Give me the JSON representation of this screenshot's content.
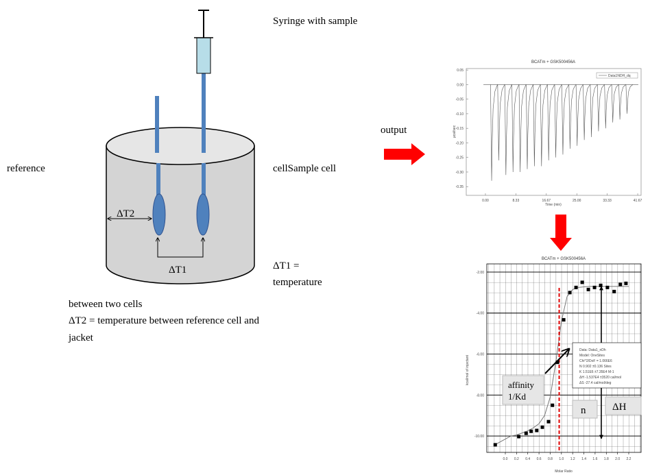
{
  "labels": {
    "syringe": "Syringe with sample",
    "output": "output",
    "reference": "reference",
    "sample_cell": "cellSample cell",
    "dt2_arrow": "ΔT2",
    "dt1_arrow": "ΔT1",
    "dt1_def": [
      "ΔT1 =",
      "temperature"
    ],
    "between": "between two cells",
    "dt2_def": "ΔT2 = temperature between reference cell and",
    "jacket": "jacket"
  },
  "raw_plot": {
    "title": "BCATm + GSK500456A",
    "legend": "Data1NDH_dq",
    "xlabel": "Time (min)",
    "ylabel": "µcal/sec",
    "xlim": [
      -5.25,
      42.6
    ],
    "ylim": [
      -0.38,
      0.055
    ],
    "xticks": [
      {
        "value": 0,
        "label": "0.00"
      },
      8.33,
      16.67,
      {
        "value": 25,
        "label": "25.00"
      },
      33.33,
      41.67
    ],
    "yticks": [
      0.05,
      {
        "value": 0,
        "label": "0.00"
      },
      -0.05,
      {
        "value": -0.1,
        "label": "-0.10"
      },
      -0.15,
      {
        "value": -0.2,
        "label": "-0.20"
      },
      -0.25,
      {
        "value": -0.3,
        "label": "-0.30"
      },
      -0.35
    ],
    "times": [
      1.7,
      3.65,
      5.6,
      7.55,
      9.5,
      11.45,
      13.4,
      15.35,
      17.3,
      19.25,
      21.2,
      23.15,
      25.1,
      27.05,
      29,
      30.95,
      32.9,
      34.85,
      36.8,
      38.75
    ],
    "peaks": [
      -0.33,
      -0.26,
      -0.31,
      -0.3,
      -0.3,
      -0.29,
      -0.28,
      -0.28,
      -0.26,
      -0.25,
      -0.24,
      -0.22,
      -0.21,
      -0.19,
      -0.18,
      -0.16,
      -0.15,
      -0.13,
      -0.12,
      -0.1
    ]
  },
  "fit_plot": {
    "title": "BCATm + GSK500456A",
    "xlabel": "Molar Ratio",
    "ylabel": "kcal/mol of injectant",
    "xlim": [
      -0.33,
      2.42
    ],
    "ylim": [
      -10.8,
      -1.6
    ],
    "xticks": [
      {
        "value": 0,
        "label": "0.0"
      },
      0.2,
      0.4,
      0.6,
      0.8,
      {
        "value": 1,
        "label": "1.0"
      },
      1.2,
      1.4,
      1.6,
      1.8,
      {
        "value": 2,
        "label": "2.0"
      },
      2.2
    ],
    "yticks": [
      {
        "value": -2,
        "label": "-2.00"
      },
      {
        "value": -4,
        "label": "-4.00"
      },
      {
        "value": -6,
        "label": "-6.00"
      },
      {
        "value": -8,
        "label": "-8.00"
      },
      {
        "value": -10,
        "label": "-10.00"
      }
    ],
    "x": [
      -0.18,
      0.24,
      0.37,
      0.46,
      0.56,
      0.66,
      0.77,
      0.84,
      0.93,
      1.04,
      1.15,
      1.26,
      1.37,
      1.48,
      1.59,
      1.7,
      1.82,
      1.94,
      2.05,
      2.15
    ],
    "y": [
      -10.43,
      -10.03,
      -9.87,
      -9.77,
      -9.73,
      -9.57,
      -9.3,
      -8.5,
      -6.4,
      -4.33,
      -3.0,
      -2.75,
      -2.5,
      -2.85,
      -2.75,
      -2.65,
      -2.75,
      -2.95,
      -2.6,
      -2.55
    ],
    "fit_x": [
      -0.2,
      -0.1,
      0,
      0.1,
      0.2,
      0.3,
      0.4,
      0.5,
      0.6,
      0.7,
      0.8,
      0.9,
      1,
      1.1,
      1.2,
      1.3,
      1.4,
      1.5,
      1.6,
      1.7,
      1.8,
      1.9,
      2,
      2.1,
      2.2
    ],
    "fit_y": [
      -10.45,
      -10.3,
      -10.15,
      -10.0,
      -9.95,
      -9.85,
      -9.75,
      -9.6,
      -9.4,
      -9.0,
      -8.1,
      -6.4,
      -4.4,
      -3.2,
      -2.85,
      -2.75,
      -2.72,
      -2.7,
      -2.7,
      -2.7,
      -2.7,
      -2.7,
      -2.7,
      -2.7,
      -2.7
    ],
    "n_x": 0.96,
    "inset": [
      "Data: Data1_nDh",
      "Model: OneSites",
      "Chi^2/DoF = 1.066E6",
      "N   0.902 ±0.136 Sites",
      "K   1.51E6 ±7.35E4 M-1",
      "ΔH  -1.537E4 ±3520 cal/mol",
      "ΔS  -27.4 cal/mol/deg"
    ],
    "affinity": [
      "affinity",
      "1/Kd"
    ],
    "n": "n",
    "dh": "ΔH"
  }
}
